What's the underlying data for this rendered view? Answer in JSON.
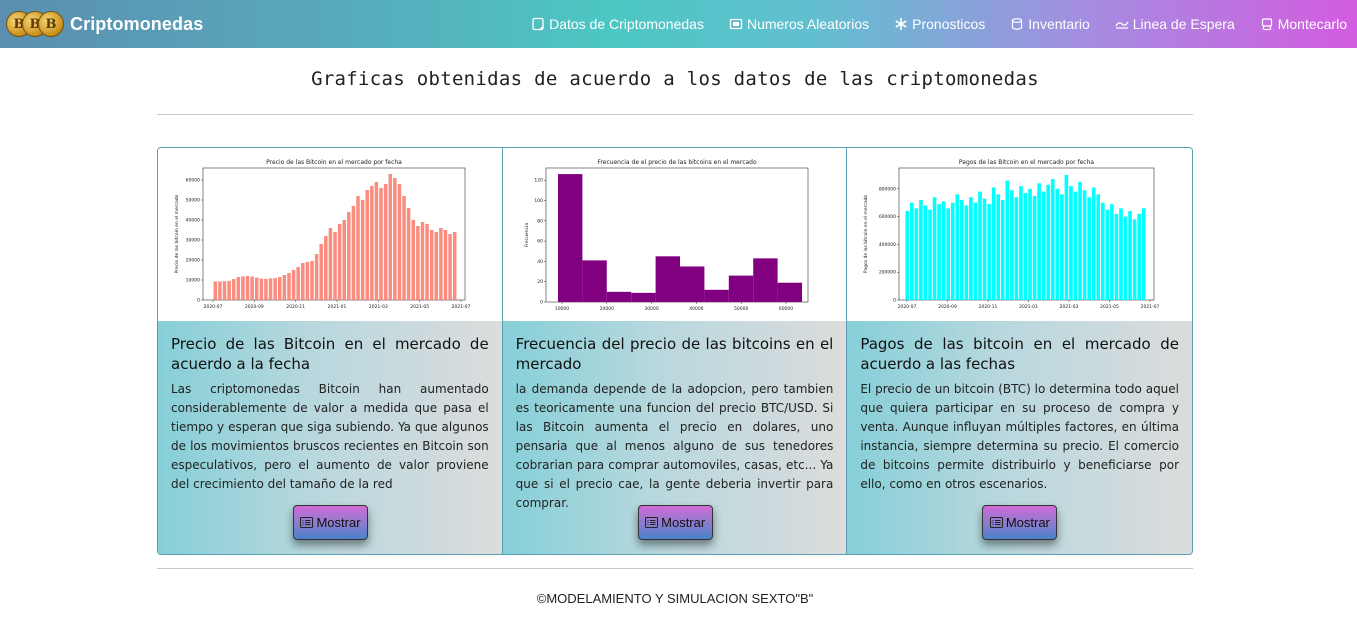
{
  "brand": {
    "name": "Criptomonedas",
    "coins": [
      "B",
      "B",
      "B"
    ]
  },
  "nav": [
    {
      "label": "Datos de Criptomonedas",
      "icon": "document-icon"
    },
    {
      "label": "Numeros Aleatorios",
      "icon": "screen-icon"
    },
    {
      "label": "Pronosticos",
      "icon": "asterisk-icon"
    },
    {
      "label": "Inventario",
      "icon": "cylinder-icon"
    },
    {
      "label": "Linea de Espera",
      "icon": "line-icon"
    },
    {
      "label": "Montecarlo",
      "icon": "cart-icon"
    }
  ],
  "page_title": "Graficas obtenidas de acuerdo a los datos de las criptomonedas",
  "cards": [
    {
      "title": "Precio de las Bitcoin en el mercado de acuerdo a la fecha",
      "text": "Las criptomonedas Bitcoin han aumentado considerablemente de valor a medida que pasa el tiempo y esperan que siga subiendo. Ya que algunos de los movimientos bruscos recientes en Bitcoin son especulativos, pero el aumento de valor proviene del crecimiento del tamaño de la red",
      "button": "Mostrar"
    },
    {
      "title": "Frecuencia del precio de las bitcoins en el mercado",
      "text": "la demanda depende de la adopcion, pero tambien es teoricamente una funcion del precio BTC/USD. Si las Bitcoin aumenta el precio en dolares, uno pensaria que al menos alguno de sus tenedores cobrarian para comprar automoviles, casas, etc... Ya que si el precio cae, la gente deberia invertir para comprar.",
      "button": "Mostrar"
    },
    {
      "title": "Pagos de las bitcoin en el mercado de acuerdo a las fechas",
      "text": "El precio de un bitcoin (BTC) lo determina todo aquel que quiera participar en su proceso de compra y venta. Aunque influyan múltiples factores, en última instancia, siempre determina su precio. El comercio de bitcoins permite distribuirlo y beneficiarse por ello, como en otros escenarios.",
      "button": "Mostrar"
    }
  ],
  "footer": "©MODELAMIENTO Y SIMULACION SEXTO\"B\"",
  "chart_data": [
    {
      "type": "bar",
      "title": "Precio de las Bitcoin en el mercado por fecha",
      "ylabel": "Precio de las bitcoin en el mercado",
      "xlabel": "",
      "color": "#fa8072",
      "x_ticks": [
        "2020-07",
        "2020-09",
        "2020-11",
        "2021-01",
        "2021-03",
        "2021-05",
        "2021-07"
      ],
      "y_ticks": [
        "0",
        "10000",
        "20000",
        "30000",
        "40000",
        "50000",
        "60000"
      ],
      "ylim": [
        0,
        66000
      ],
      "values": [
        9200,
        9300,
        9400,
        9600,
        10500,
        11500,
        11800,
        12000,
        11700,
        11200,
        10700,
        10600,
        10800,
        11000,
        11500,
        12500,
        13500,
        15000,
        16500,
        18500,
        19000,
        19500,
        23000,
        28000,
        32000,
        36000,
        34000,
        38000,
        40000,
        44000,
        47000,
        52000,
        50000,
        55000,
        57000,
        59000,
        56000,
        58000,
        63000,
        61000,
        58000,
        52000,
        46000,
        40000,
        37000,
        39000,
        38000,
        35000,
        34000,
        36000,
        35000,
        33000,
        34000
      ]
    },
    {
      "type": "bar",
      "title": "Frecuencia de el precio de las bitcoins en el mercado",
      "ylabel": "Frecuencia",
      "xlabel": "",
      "color": "#800080",
      "x_ticks": [
        "10000",
        "20000",
        "30000",
        "40000",
        "50000",
        "60000"
      ],
      "y_ticks": [
        "0",
        "20",
        "40",
        "60",
        "80",
        "100",
        "120"
      ],
      "ylim": [
        0,
        132
      ],
      "values": [
        126,
        41,
        10,
        9,
        45,
        35,
        12,
        26,
        43,
        19
      ]
    },
    {
      "type": "bar",
      "title": "Pagos de las Bitcoin en el mercado por fecha",
      "ylabel": "Pagos de las bitcoin en el mercado",
      "xlabel": "",
      "color": "#00ffff",
      "x_ticks": [
        "2020-07",
        "2020-09",
        "2020-11",
        "2021-01",
        "2021-03",
        "2021-05",
        "2021-07"
      ],
      "y_ticks": [
        "0",
        "200000",
        "400000",
        "600000",
        "800000"
      ],
      "ylim": [
        0,
        950000
      ],
      "values": [
        640000,
        700000,
        660000,
        720000,
        680000,
        650000,
        740000,
        690000,
        710000,
        660000,
        700000,
        760000,
        720000,
        680000,
        740000,
        700000,
        780000,
        730000,
        690000,
        810000,
        760000,
        720000,
        860000,
        790000,
        740000,
        820000,
        770000,
        800000,
        750000,
        840000,
        780000,
        830000,
        870000,
        800000,
        760000,
        900000,
        820000,
        780000,
        850000,
        790000,
        740000,
        810000,
        760000,
        700000,
        650000,
        690000,
        620000,
        660000,
        600000,
        640000,
        580000,
        620000,
        660000
      ]
    }
  ]
}
